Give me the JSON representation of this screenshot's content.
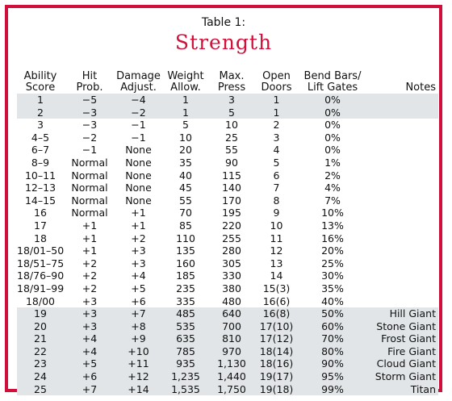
{
  "table": {
    "caption": "Table 1:",
    "title": "Strength",
    "headers": [
      [
        "Ability",
        "Score"
      ],
      [
        "Hit",
        "Prob."
      ],
      [
        "Damage",
        "Adjust."
      ],
      [
        "Weight",
        "Allow."
      ],
      [
        "Max.",
        "Press"
      ],
      [
        "Open",
        "Doors"
      ],
      [
        "Bend Bars/",
        "Lift Gates"
      ],
      [
        "",
        "Notes"
      ]
    ],
    "rows": [
      {
        "shaded": true,
        "cells": [
          "1",
          "−5",
          "−4",
          "1",
          "3",
          "1",
          "0%",
          ""
        ]
      },
      {
        "shaded": true,
        "cells": [
          "2",
          "−3",
          "−2",
          "1",
          "5",
          "1",
          "0%",
          ""
        ]
      },
      {
        "shaded": false,
        "cells": [
          "3",
          "−3",
          "−1",
          "5",
          "10",
          "2",
          "0%",
          ""
        ]
      },
      {
        "shaded": false,
        "cells": [
          "4–5",
          "−2",
          "−1",
          "10",
          "25",
          "3",
          "0%",
          ""
        ]
      },
      {
        "shaded": false,
        "cells": [
          "6–7",
          "−1",
          "None",
          "20",
          "55",
          "4",
          "0%",
          ""
        ]
      },
      {
        "shaded": false,
        "cells": [
          "8–9",
          "Normal",
          "None",
          "35",
          "90",
          "5",
          "1%",
          ""
        ]
      },
      {
        "shaded": false,
        "cells": [
          "10–11",
          "Normal",
          "None",
          "40",
          "115",
          "6",
          "2%",
          ""
        ]
      },
      {
        "shaded": false,
        "cells": [
          "12–13",
          "Normal",
          "None",
          "45",
          "140",
          "7",
          "4%",
          ""
        ]
      },
      {
        "shaded": false,
        "cells": [
          "14–15",
          "Normal",
          "None",
          "55",
          "170",
          "8",
          "7%",
          ""
        ]
      },
      {
        "shaded": false,
        "cells": [
          "16",
          "Normal",
          "+1",
          "70",
          "195",
          "9",
          "10%",
          ""
        ]
      },
      {
        "shaded": false,
        "cells": [
          "17",
          "+1",
          "+1",
          "85",
          "220",
          "10",
          "13%",
          ""
        ]
      },
      {
        "shaded": false,
        "cells": [
          "18",
          "+1",
          "+2",
          "110",
          "255",
          "11",
          "16%",
          ""
        ]
      },
      {
        "shaded": false,
        "cells": [
          "18/01–50",
          "+1",
          "+3",
          "135",
          "280",
          "12",
          "20%",
          ""
        ]
      },
      {
        "shaded": false,
        "cells": [
          "18/51–75",
          "+2",
          "+3",
          "160",
          "305",
          "13",
          "25%",
          ""
        ]
      },
      {
        "shaded": false,
        "cells": [
          "18/76–90",
          "+2",
          "+4",
          "185",
          "330",
          "14",
          "30%",
          ""
        ]
      },
      {
        "shaded": false,
        "cells": [
          "18/91–99",
          "+2",
          "+5",
          "235",
          "380",
          "15(3)",
          "35%",
          ""
        ]
      },
      {
        "shaded": false,
        "cells": [
          "18/00",
          "+3",
          "+6",
          "335",
          "480",
          "16(6)",
          "40%",
          ""
        ]
      },
      {
        "shaded": true,
        "cells": [
          "19",
          "+3",
          "+7",
          "485",
          "640",
          "16(8)",
          "50%",
          "Hill Giant"
        ]
      },
      {
        "shaded": true,
        "cells": [
          "20",
          "+3",
          "+8",
          "535",
          "700",
          "17(10)",
          "60%",
          "Stone Giant"
        ]
      },
      {
        "shaded": true,
        "cells": [
          "21",
          "+4",
          "+9",
          "635",
          "810",
          "17(12)",
          "70%",
          "Frost Giant"
        ]
      },
      {
        "shaded": true,
        "cells": [
          "22",
          "+4",
          "+10",
          "785",
          "970",
          "18(14)",
          "80%",
          "Fire Giant"
        ]
      },
      {
        "shaded": true,
        "cells": [
          "23",
          "+5",
          "+11",
          "935",
          "1,130",
          "18(16)",
          "90%",
          "Cloud Giant"
        ]
      },
      {
        "shaded": true,
        "cells": [
          "24",
          "+6",
          "+12",
          "1,235",
          "1,440",
          "19(17)",
          "95%",
          "Storm Giant"
        ]
      },
      {
        "shaded": true,
        "cells": [
          "25",
          "+7",
          "+14",
          "1,535",
          "1,750",
          "19(18)",
          "99%",
          "Titan"
        ]
      }
    ]
  },
  "colors": {
    "border": "#d0103a",
    "title": "#d0103a",
    "shade": "#e1e5e7"
  }
}
